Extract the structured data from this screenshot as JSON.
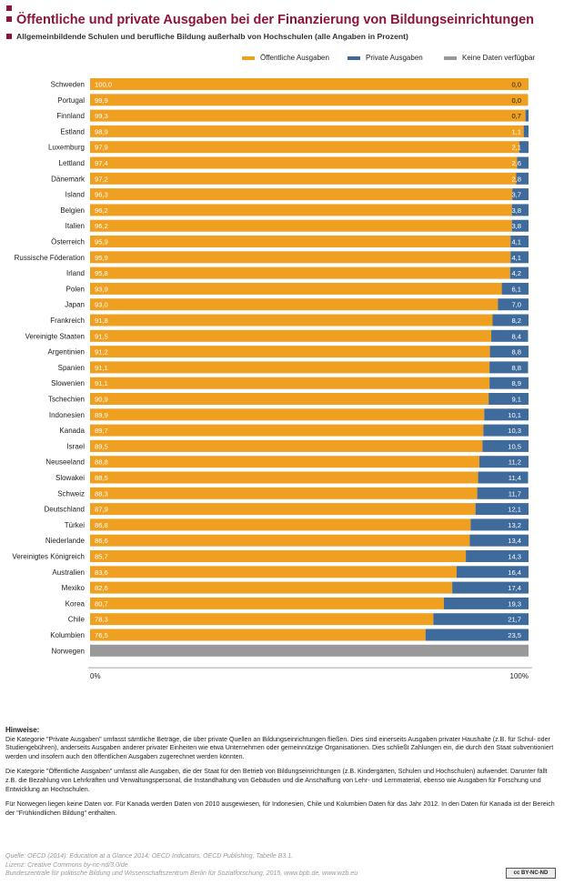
{
  "title": "Öffentliche und private Ausgaben bei der Finanzierung von Bildungseinrichtungen",
  "subtitle": "Allgemeinbildende Schulen und berufliche Bildung außerhalb von Hochschulen (alle Angaben in Prozent)",
  "legend": [
    {
      "label": "Öffentliche Ausgaben",
      "color": "#f0a020"
    },
    {
      "label": "Private Ausgaben",
      "color": "#3f6b9c"
    },
    {
      "label": "Keine Daten verfügbar",
      "color": "#999999"
    }
  ],
  "chart_data": {
    "type": "bar",
    "orientation": "horizontal",
    "stacked": true,
    "categories": [
      "Schweden",
      "Portugal",
      "Finnland",
      "Estland",
      "Luxemburg",
      "Lettland",
      "Dänemark",
      "Island",
      "Belgien",
      "Italien",
      "Österreich",
      "Russische Föderation",
      "Irland",
      "Polen",
      "Japan",
      "Frankreich",
      "Vereinigte Staaten",
      "Argentinien",
      "Spanien",
      "Slowenien",
      "Tschechien",
      "Indonesien",
      "Kanada",
      "Israel",
      "Neuseeland",
      "Slowakei",
      "Schweiz",
      "Deutschland",
      "Türkei",
      "Niederlande",
      "Vereinigtes Königreich",
      "Australien",
      "Mexiko",
      "Korea",
      "Chile",
      "Kolumbien",
      "Norwegen"
    ],
    "series": [
      {
        "name": "Öffentliche Ausgaben",
        "color": "#f0a020",
        "values": [
          100.0,
          99.9,
          99.3,
          98.9,
          97.9,
          97.4,
          97.2,
          96.3,
          96.2,
          96.2,
          95.9,
          95.9,
          95.8,
          93.9,
          93.0,
          91.8,
          91.5,
          91.2,
          91.1,
          91.1,
          90.9,
          89.9,
          89.7,
          89.5,
          88.8,
          88.5,
          88.3,
          87.9,
          86.8,
          86.6,
          85.7,
          83.6,
          82.6,
          80.7,
          78.3,
          76.5,
          null
        ],
        "labels": [
          "100,0",
          "99,9",
          "99,3",
          "98,9",
          "97,9",
          "97,4",
          "97,2",
          "96,3",
          "96,2",
          "96,2",
          "95,9",
          "95,9",
          "95,8",
          "93,9",
          "93,0",
          "91,8",
          "91,5",
          "91,2",
          "91,1",
          "91,1",
          "90,9",
          "89,9",
          "89,7",
          "89,5",
          "88,8",
          "88,5",
          "88,3",
          "87,9",
          "86,8",
          "86,6",
          "85,7",
          "83,6",
          "82,6",
          "80,7",
          "78,3",
          "76,5",
          ""
        ]
      },
      {
        "name": "Private Ausgaben",
        "color": "#3f6b9c",
        "values": [
          0.0,
          0.0,
          0.7,
          1.1,
          2.1,
          2.6,
          2.8,
          3.7,
          3.8,
          3.8,
          4.1,
          4.1,
          4.2,
          6.1,
          7.0,
          8.2,
          8.4,
          8.8,
          8.8,
          8.9,
          9.1,
          10.1,
          10.3,
          10.5,
          11.2,
          11.4,
          11.7,
          12.1,
          13.2,
          13.4,
          14.3,
          16.4,
          17.4,
          19.3,
          21.7,
          23.5,
          null
        ],
        "labels": [
          "0,0",
          "0,0",
          "0,7",
          "1,1",
          "2,1",
          "2,6",
          "2,8",
          "3,7",
          "3,8",
          "3,8",
          "4,1",
          "4,1",
          "4,2",
          "6,1",
          "7,0",
          "8,2",
          "8,4",
          "8,8",
          "8,8",
          "8,9",
          "9,1",
          "10,1",
          "10,3",
          "10,5",
          "11,2",
          "11,4",
          "11,7",
          "12,1",
          "13,2",
          "13,4",
          "14,3",
          "16,4",
          "17,4",
          "19,3",
          "21,7",
          "23,5",
          ""
        ]
      },
      {
        "name": "Keine Daten verfügbar",
        "color": "#999999",
        "values": [
          null,
          null,
          null,
          null,
          null,
          null,
          null,
          null,
          null,
          null,
          null,
          null,
          null,
          null,
          null,
          null,
          null,
          null,
          null,
          null,
          null,
          null,
          null,
          null,
          null,
          null,
          null,
          null,
          null,
          null,
          null,
          null,
          null,
          null,
          null,
          null,
          100
        ]
      }
    ],
    "xlim": [
      0,
      100
    ],
    "x_ticks": [
      "0%",
      "100%"
    ]
  },
  "notes": {
    "heading": "Hinweise:",
    "p1": "Die Kategorie \"Private Ausgaben\" umfasst sämtliche Beträge, die über private Quellen an Bildungseinrichtungen fließen. Dies sind einerseits Ausgaben privater Haushalte (z.B. für Schul- oder Studiengebühren), anderseits Ausgaben anderer privater Einheiten wie etwa Unternehmen oder gemeinnützige Organisationen. Dies schließt Zahlungen ein, die durch den Staat subventioniert werden und insofern auch den öffentlichen Ausgaben zugerechnet werden könnten.",
    "p2": "Die Kategorie \"Öffentliche Ausgaben\" umfasst alle Ausgaben, die der Staat für den Betrieb von Bildungseinrichtungen (z.B. Kindergärten, Schulen und Hochschulen) aufwendet. Darunter fällt z.B. die Bezahlung von Lehrkräften und Verwaltungspersonal, die Instandhaltung von Gebäuden und die Anschaffung von Lehr- und Lernmaterial, ebenso wie Ausgaben für Forschung und Entwicklung an Hochschulen.",
    "p3": "Für Norwegen liegen keine Daten vor. Für Kanada werden Daten von 2010 ausgewiesen, für Indonesien, Chile und Kolumbien Daten für das Jahr 2012. In den Daten für Kanada ist der Bereich der \"Frühkindlichen Bildung\" enthalten."
  },
  "source": {
    "line1": "Quelle: OECD (2014): Education at a Glance 2014: OECD Indicators, OECD Publishing, Tabelle B3.1.",
    "line2": "Lizenz: Creative Commons by-nc-nd/3.0/de",
    "line3": "Bundeszentrale für politische Bildung und Wissenschaftszentrum Berlin für Sozialforschung, 2015, www.bpb.de, www.wzb.eu"
  },
  "license_badge": "cc BY-NC-ND"
}
